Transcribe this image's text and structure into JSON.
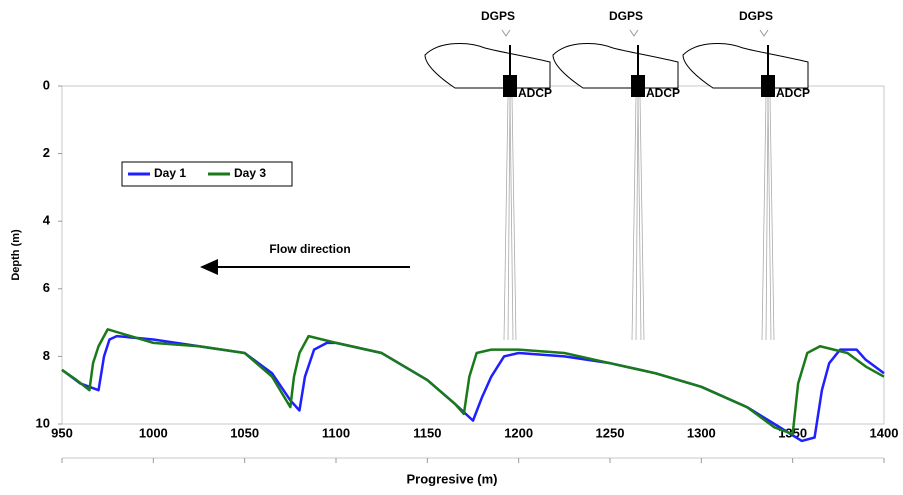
{
  "chart_data": {
    "type": "line",
    "xlabel": "Progresive (m)",
    "ylabel": "Depth (m)",
    "xlim": [
      950,
      1400
    ],
    "xticks": [
      950,
      1000,
      1050,
      1100,
      1150,
      1200,
      1250,
      1300,
      1350,
      1400
    ],
    "ylim": [
      10,
      0
    ],
    "yticks": [
      0,
      2,
      4,
      6,
      8,
      10
    ],
    "legend": "upper left",
    "annotations": {
      "flow": "Flow direction",
      "gps": "DGPS",
      "adcp": "ADCP"
    },
    "series": [
      {
        "name": "Day 1",
        "color": "#1f1fff",
        "x": [
          950,
          960,
          970,
          973,
          976,
          980,
          1000,
          1025,
          1050,
          1065,
          1075,
          1080,
          1083,
          1088,
          1095,
          1100,
          1125,
          1150,
          1165,
          1175,
          1180,
          1185,
          1192,
          1200,
          1225,
          1250,
          1275,
          1300,
          1325,
          1340,
          1355,
          1362,
          1366,
          1370,
          1376,
          1385,
          1390,
          1400
        ],
        "values": [
          8.4,
          8.8,
          9.0,
          8.0,
          7.5,
          7.4,
          7.5,
          7.7,
          7.9,
          8.5,
          9.3,
          9.6,
          8.6,
          7.8,
          7.6,
          7.6,
          7.9,
          8.7,
          9.4,
          9.9,
          9.2,
          8.6,
          8.0,
          7.9,
          8.0,
          8.2,
          8.5,
          8.9,
          9.5,
          10.0,
          10.5,
          10.4,
          9.0,
          8.2,
          7.8,
          7.8,
          8.1,
          8.5
        ]
      },
      {
        "name": "Day 3",
        "color": "#1a7a1a",
        "x": [
          950,
          958,
          965,
          967,
          970,
          975,
          1000,
          1025,
          1050,
          1065,
          1075,
          1077,
          1080,
          1085,
          1100,
          1125,
          1150,
          1165,
          1170,
          1173,
          1177,
          1185,
          1200,
          1225,
          1250,
          1275,
          1300,
          1325,
          1340,
          1350,
          1353,
          1358,
          1365,
          1380,
          1390,
          1400
        ],
        "values": [
          8.4,
          8.7,
          9.0,
          8.2,
          7.7,
          7.2,
          7.6,
          7.7,
          7.9,
          8.6,
          9.5,
          8.6,
          7.9,
          7.4,
          7.6,
          7.9,
          8.7,
          9.4,
          9.7,
          8.6,
          7.9,
          7.8,
          7.8,
          7.9,
          8.2,
          8.5,
          8.9,
          9.5,
          10.1,
          10.3,
          8.8,
          7.9,
          7.7,
          7.9,
          8.3,
          8.6
        ]
      }
    ]
  }
}
